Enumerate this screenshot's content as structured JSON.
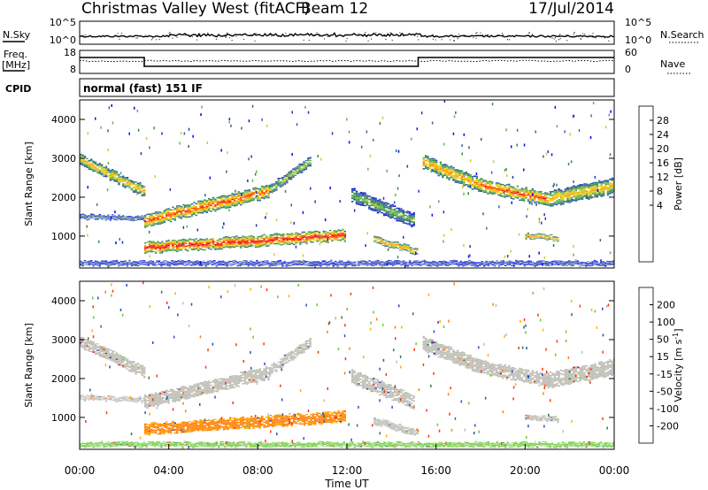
{
  "header": {
    "station": "Christmas Valley West (fitACF)",
    "beam": "Beam 12",
    "date": "17/Jul/2014"
  },
  "noise_panel": {
    "left_label": "N.Sky",
    "left_ticks": [
      "10^5",
      "10^0"
    ],
    "right_ticks": [
      "10^5",
      "10^0"
    ],
    "right_label": "N.Search"
  },
  "freq_panel": {
    "left_label_1": "Freq.",
    "left_label_2": "[MHz]",
    "left_ticks": [
      "18",
      "8"
    ],
    "right_ticks": [
      "60",
      "0"
    ],
    "right_label": "Nave"
  },
  "cpid": {
    "label": "CPID",
    "mode": "normal (fast) 151 IF"
  },
  "power_panel": {
    "ylabel": "Slant Range [km]",
    "yticks": [
      "4000",
      "3000",
      "2000",
      "1000"
    ],
    "colorbar_label": "Power [dB]",
    "colorbar_ticks": [
      "28",
      "24",
      "20",
      "16",
      "12",
      "8",
      "4"
    ],
    "colors": [
      "#e8001a",
      "#ff3300",
      "#ff6600",
      "#ff9900",
      "#ffcc00",
      "#cccc33",
      "#66b24d",
      "#33884d",
      "#336699",
      "#2233bb",
      "#0000ff"
    ]
  },
  "velocity_panel": {
    "ylabel": "Slant Range [km]",
    "yticks": [
      "4000",
      "3000",
      "2000",
      "1000"
    ],
    "colorbar_label": "Velocity [m s",
    "colorbar_label_sup": "-1",
    "colorbar_label_end": "]",
    "colorbar_ticks": [
      "200",
      "100",
      "50",
      "15",
      "-15",
      "-50",
      "-100",
      "-200"
    ],
    "colors": [
      "#1a2a99",
      "#2a4dc0",
      "#2e7d4a",
      "#66cc33",
      "#bdbdb5",
      "#ffb000",
      "#ff8000",
      "#ff3300",
      "#e00010"
    ]
  },
  "xaxis": {
    "ticks": [
      "00:00",
      "04:00",
      "08:00",
      "12:00",
      "16:00",
      "20:00",
      "00:00"
    ],
    "label": "Time UT"
  },
  "chart_data": {
    "type": "heatmap",
    "title": "Christmas Valley West (fitACF) Beam 12 17/Jul/2014",
    "xlabel": "Time UT",
    "ylabel": "Slant Range [km]",
    "x_range_hours": [
      0,
      24
    ],
    "y_range_km": [
      180,
      4500
    ],
    "power_range_db": [
      0,
      30
    ],
    "velocity_range_ms": [
      -250,
      250
    ],
    "frequency_mhz": {
      "hours": [
        0,
        2.9,
        2.9,
        15.2,
        15.2,
        24
      ],
      "values": [
        15,
        15,
        10,
        10,
        15,
        15
      ]
    },
    "echo_bands": [
      {
        "h0": 0.0,
        "h1": 2.9,
        "r0": 2950,
        "r1": 2150,
        "width": 260,
        "power": 18,
        "velocity": 0
      },
      {
        "h0": 0.0,
        "h1": 2.9,
        "r0": 1500,
        "r1": 1450,
        "width": 110,
        "power": 8,
        "velocity": 0
      },
      {
        "h0": 2.9,
        "h1": 8.5,
        "r0": 1400,
        "r1": 2150,
        "width": 300,
        "power": 24,
        "velocity": 0
      },
      {
        "h0": 8.5,
        "h1": 10.4,
        "r0": 2200,
        "r1": 2950,
        "width": 220,
        "power": 14,
        "velocity": 0
      },
      {
        "h0": 2.9,
        "h1": 11.9,
        "r0": 700,
        "r1": 1020,
        "width": 260,
        "power": 27,
        "velocity": -80
      },
      {
        "h0": 12.2,
        "h1": 15.0,
        "r0": 2050,
        "r1": 1400,
        "width": 320,
        "power": 12,
        "velocity": 0
      },
      {
        "h0": 13.2,
        "h1": 15.2,
        "r0": 900,
        "r1": 600,
        "width": 160,
        "power": 20,
        "velocity": 0
      },
      {
        "h0": 15.4,
        "h1": 18.0,
        "r0": 2900,
        "r1": 2300,
        "width": 320,
        "power": 20,
        "velocity": 0
      },
      {
        "h0": 18.0,
        "h1": 21.0,
        "r0": 2300,
        "r1": 1950,
        "width": 300,
        "power": 24,
        "velocity": 0
      },
      {
        "h0": 21.0,
        "h1": 24.0,
        "r0": 1950,
        "r1": 2300,
        "width": 360,
        "power": 18,
        "velocity": 0
      },
      {
        "h0": 20.0,
        "h1": 21.5,
        "r0": 1000,
        "r1": 950,
        "width": 120,
        "power": 20,
        "velocity": 0
      },
      {
        "h0": 0.0,
        "h1": 24.0,
        "r0": 300,
        "r1": 300,
        "width": 110,
        "power": 6,
        "velocity": 40
      }
    ]
  }
}
